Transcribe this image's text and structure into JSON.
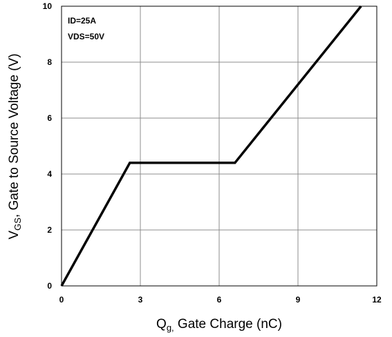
{
  "chart_data": {
    "type": "line",
    "xlabel_main": "Q",
    "xlabel_sub": "g,",
    "xlabel_rest": " Gate Charge (nC)",
    "ylabel_main": "V",
    "ylabel_sub": "GS",
    "ylabel_rest": ",  Gate to Source Voltage (V)",
    "xlim": [
      0,
      12
    ],
    "ylim": [
      0,
      10
    ],
    "xticks": [
      0,
      3,
      6,
      9,
      12
    ],
    "yticks": [
      0,
      2,
      4,
      6,
      8,
      10
    ],
    "grid": true,
    "annotations": [
      "ID=25A",
      "VDS=50V"
    ],
    "series": [
      {
        "x": [
          0,
          2.6,
          6.6,
          11.4
        ],
        "y": [
          0,
          4.4,
          4.4,
          10
        ]
      }
    ],
    "line_color": "#000000"
  }
}
